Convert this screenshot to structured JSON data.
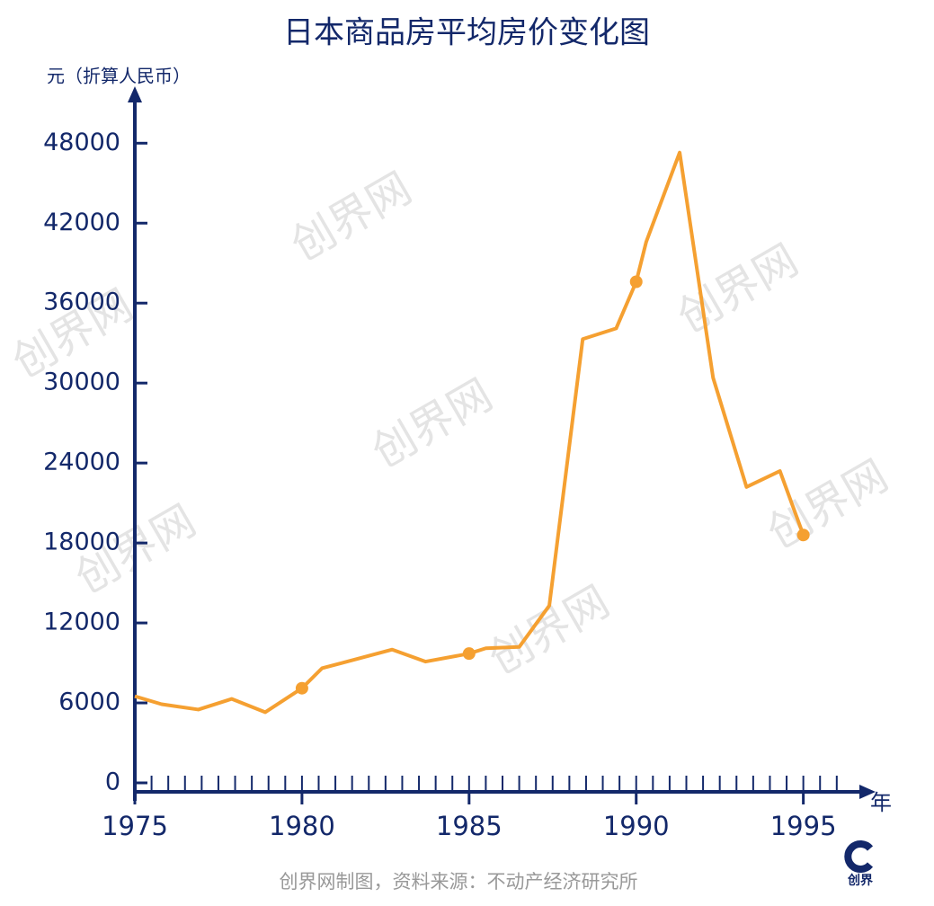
{
  "chart_data": {
    "type": "line",
    "title": "日本商品房平均房价变化图",
    "y_label": "元（折算人民币）",
    "x_label": "年",
    "source": "创界网制图，资料来源：不动产经济研究所",
    "watermark": "创界网",
    "logo": "创界",
    "x": [
      1975,
      1975.8,
      1976.9,
      1977.9,
      1978.9,
      1980,
      1980.6,
      1982.7,
      1983.7,
      1985,
      1985.5,
      1986.5,
      1987.4,
      1988.4,
      1989.4,
      1990,
      1990.3,
      1991.3,
      1992.3,
      1993.3,
      1994.3,
      1995
    ],
    "series": [
      {
        "color": "#f5a031",
        "values": [
          6500,
          5900,
          5500,
          6300,
          5300,
          7100,
          8600,
          10000,
          9100,
          9700,
          10100,
          10200,
          13300,
          33300,
          34100,
          37600,
          40600,
          47300,
          30400,
          22200,
          23400,
          18600
        ],
        "marked": [
          false,
          false,
          false,
          false,
          false,
          true,
          false,
          false,
          false,
          true,
          false,
          false,
          false,
          false,
          false,
          true,
          false,
          false,
          false,
          false,
          false,
          true
        ]
      }
    ],
    "xlim": [
      1975,
      1997
    ],
    "ylim": [
      0,
      52000
    ],
    "xticks": [
      1975,
      1980,
      1985,
      1990,
      1995
    ],
    "xminorticks": [
      1975.5,
      1976,
      1976.5,
      1977,
      1977.5,
      1978,
      1978.5,
      1979,
      1979.5,
      1980,
      1980.5,
      1981,
      1981.5,
      1982,
      1982.5,
      1983,
      1983.5,
      1984,
      1984.5,
      1985,
      1985.5,
      1986,
      1986.5,
      1987,
      1987.5,
      1988,
      1988.5,
      1989,
      1989.5,
      1990,
      1990.5,
      1991,
      1991.5,
      1992,
      1992.5,
      1993,
      1993.5,
      1994,
      1994.5,
      1995,
      1995.5,
      1996
    ],
    "yticks": [
      0,
      6000,
      12000,
      18000,
      24000,
      30000,
      36000,
      42000,
      48000
    ],
    "axis_color": "#13286a"
  }
}
